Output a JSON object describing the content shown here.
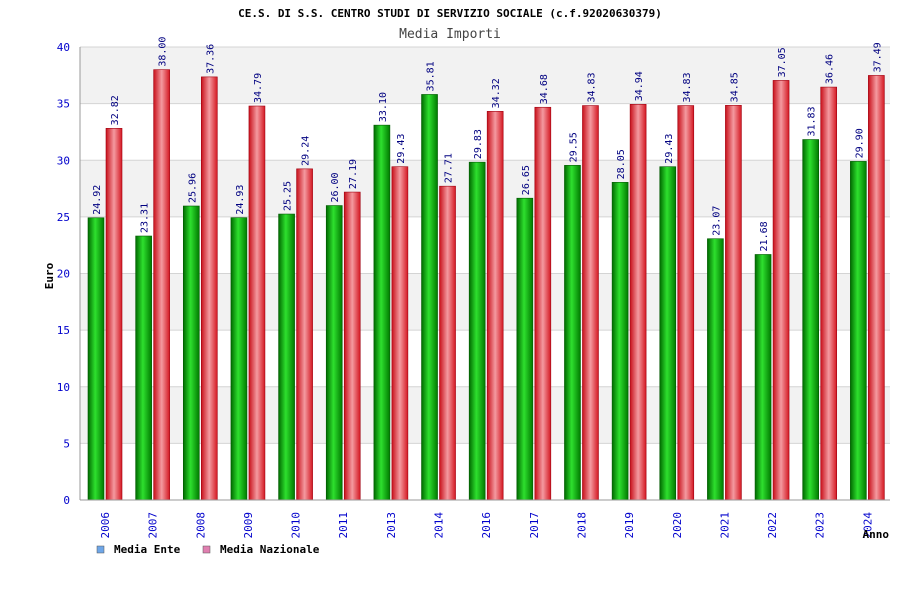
{
  "chart_data": {
    "type": "bar",
    "title": "CE.S. DI S.S. CENTRO STUDI DI SERVIZIO SOCIALE (c.f.92020630379)",
    "subtitle": "Media Importi",
    "xlabel": "Anno",
    "ylabel": "Euro",
    "ylim": [
      0,
      40
    ],
    "yticks": [
      "0",
      "5",
      "10",
      "15",
      "20",
      "25",
      "30",
      "35",
      "40"
    ],
    "grid": true,
    "legend_position": "bottom-left",
    "categories": [
      "2006",
      "2007",
      "2008",
      "2009",
      "2010",
      "2011",
      "2013",
      "2014",
      "2016",
      "2017",
      "2018",
      "2019",
      "2020",
      "2021",
      "2022",
      "2023",
      "2024"
    ],
    "series": [
      {
        "name": "Media Ente",
        "color": "#00b000",
        "legend_color": "#6ea6e8",
        "values": [
          24.92,
          23.31,
          25.96,
          24.93,
          25.25,
          26.0,
          33.1,
          35.81,
          29.83,
          26.65,
          29.55,
          28.05,
          29.43,
          23.07,
          21.68,
          31.83,
          29.9
        ],
        "labels": [
          "24.92",
          "23.31",
          "25.96",
          "24.93",
          "25.25",
          "26.00",
          "33.10",
          "35.81",
          "29.83",
          "26.65",
          "29.55",
          "28.05",
          "29.43",
          "23.07",
          "21.68",
          "31.83",
          "29.90"
        ]
      },
      {
        "name": "Media Nazionale",
        "color": "#e8202a",
        "legend_color": "#e07fb0",
        "values": [
          32.82,
          38.0,
          37.36,
          34.79,
          29.24,
          27.19,
          29.43,
          27.71,
          34.32,
          34.68,
          34.83,
          34.94,
          34.83,
          34.85,
          37.05,
          36.46,
          37.49
        ],
        "labels": [
          "32.82",
          "38.00",
          "37.36",
          "34.79",
          "29.24",
          "27.19",
          "29.43",
          "27.71",
          "34.32",
          "34.68",
          "34.83",
          "34.94",
          "34.83",
          "34.85",
          "37.05",
          "36.46",
          "37.49"
        ]
      }
    ],
    "colors": {
      "title": "#000000",
      "subtitle": "#444444",
      "axis_text": "#0000cc",
      "value_label": "#000080",
      "band": "#f2f2f2",
      "gridline": "#d4d4d4"
    }
  }
}
